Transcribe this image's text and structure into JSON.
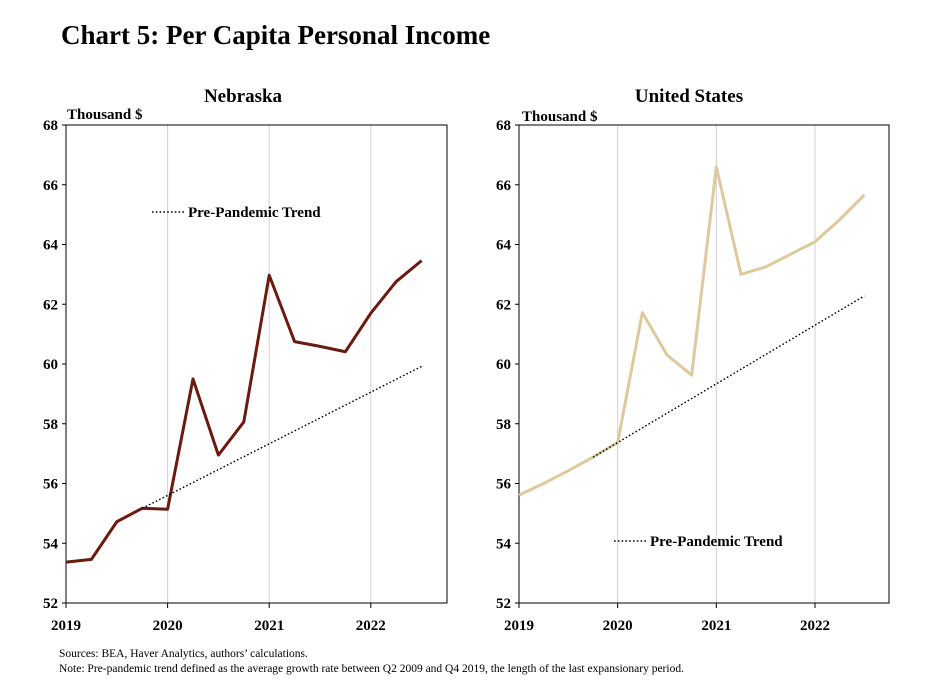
{
  "title": "Chart 5: Per Capita Personal Income",
  "footnotes": {
    "sources": "Sources: BEA,  Haver Analytics, authors’ calculations.",
    "note": "Note: Pre-pandemic  trend defined as the average growth rate between Q2 2009  and Q4 2019,  the length of the last expansionary period."
  },
  "chart_data": [
    {
      "type": "line",
      "title": "Nebraska",
      "ylabel": "Thousand $",
      "ylim": [
        52,
        68
      ],
      "yticks": [
        52,
        54,
        56,
        58,
        60,
        62,
        64,
        66,
        68
      ],
      "xlim": [
        2019.0,
        2022.75
      ],
      "xticks": [
        2019,
        2020,
        2021,
        2022
      ],
      "grid": "vertical lines at year ticks",
      "legend": {
        "label": "Pre-Pandemic Trend",
        "placement": "upper-left"
      },
      "colors": {
        "actual": "#6b1a10",
        "trend": "#000000",
        "grid": "#d0d0d0"
      },
      "series": [
        {
          "name": "",
          "style": "solid",
          "x": [
            "2019 Q1",
            "2019 Q2",
            "2019 Q3",
            "2019 Q4",
            "2020 Q1",
            "2020 Q2",
            "2020 Q3",
            "2020 Q4",
            "2021 Q1",
            "2021 Q2",
            "2021 Q3",
            "2021 Q4",
            "2022 Q1",
            "2022 Q2",
            "2022 Q3"
          ],
          "values": [
            53.37,
            53.46,
            54.72,
            55.17,
            55.14,
            59.5,
            56.95,
            58.06,
            62.97,
            60.75,
            60.59,
            60.41,
            61.7,
            62.76,
            63.46
          ]
        },
        {
          "name": "Pre-Pandemic Trend",
          "style": "dotted",
          "x": [
            "2019 Q4",
            "2022 Q3"
          ],
          "values": [
            55.17,
            59.92
          ]
        }
      ]
    },
    {
      "type": "line",
      "title": "United States",
      "ylabel": "Thousand $",
      "ylim": [
        52,
        68
      ],
      "yticks": [
        52,
        54,
        56,
        58,
        60,
        62,
        64,
        66,
        68
      ],
      "xlim": [
        2019.0,
        2022.75
      ],
      "xticks": [
        2019,
        2020,
        2021,
        2022
      ],
      "grid": "vertical lines at year ticks",
      "legend": {
        "label": "Pre-Pandemic Trend",
        "placement": "lower-center"
      },
      "colors": {
        "actual": "#ddc99e",
        "trend": "#000000",
        "grid": "#d0d0d0"
      },
      "series": [
        {
          "name": "",
          "style": "solid",
          "x": [
            "2019 Q1",
            "2019 Q2",
            "2019 Q3",
            "2019 Q4",
            "2020 Q1",
            "2020 Q2",
            "2020 Q3",
            "2020 Q4",
            "2021 Q1",
            "2021 Q2",
            "2021 Q3",
            "2021 Q4",
            "2022 Q1",
            "2022 Q2",
            "2022 Q3"
          ],
          "values": [
            55.61,
            56.0,
            56.43,
            56.88,
            57.37,
            61.72,
            60.3,
            59.63,
            66.6,
            63.0,
            63.25,
            63.67,
            64.09,
            64.83,
            65.66
          ]
        },
        {
          "name": "Pre-Pandemic Trend",
          "style": "dotted",
          "x": [
            "2019 Q4",
            "2022 Q3"
          ],
          "values": [
            56.88,
            62.28
          ]
        }
      ]
    }
  ]
}
